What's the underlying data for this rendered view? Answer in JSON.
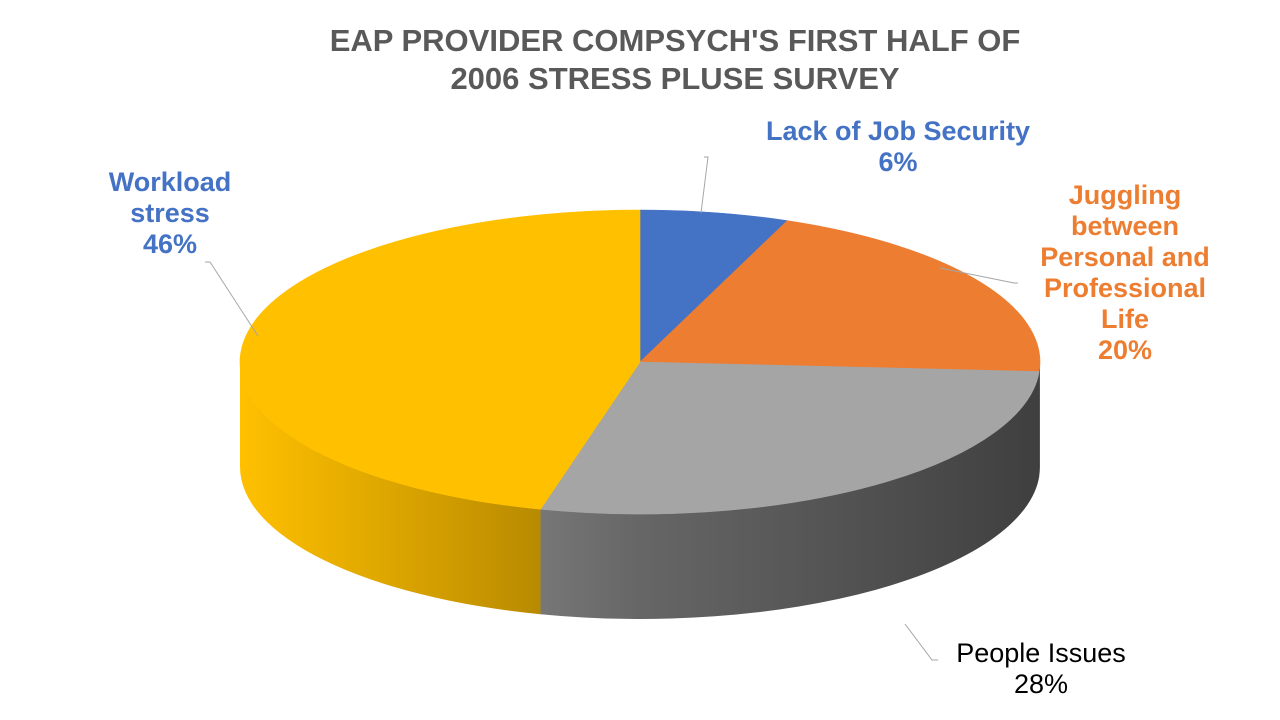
{
  "chart_data": {
    "type": "pie",
    "title_lines": [
      "EAP PROVIDER COMPSYCH'S FIRST HALF OF",
      "2006 STRESS PLUSE SURVEY"
    ],
    "slices": [
      {
        "name": "Lack of Job Security",
        "value": 6,
        "value_label": "6%",
        "color": "#4472c4",
        "label_lines": [
          "Lack of Job Security"
        ],
        "label_color": "#4472c4",
        "label_bold": true
      },
      {
        "name": "Juggling between Personal and Professional Life",
        "value": 20,
        "value_label": "20%",
        "color": "#ed7d31",
        "label_lines": [
          "Juggling",
          "between",
          "Personal and",
          "Professional",
          "Life"
        ],
        "label_color": "#ed7d31",
        "label_bold": true
      },
      {
        "name": "People Issues",
        "value": 28,
        "value_label": "28%",
        "color": "#a5a5a5",
        "label_lines": [
          "People Issues"
        ],
        "label_color": "#000000",
        "label_bold": false
      },
      {
        "name": "Workload stress",
        "value": 46,
        "value_label": "46%",
        "color": "#ffc000",
        "label_lines": [
          "Workload",
          "stress"
        ],
        "label_color": "#4472c4",
        "label_bold": true
      }
    ],
    "start_angle_deg": 0,
    "direction": "clockwise",
    "style": "3d",
    "legend": "none",
    "title_color": "#595959"
  }
}
